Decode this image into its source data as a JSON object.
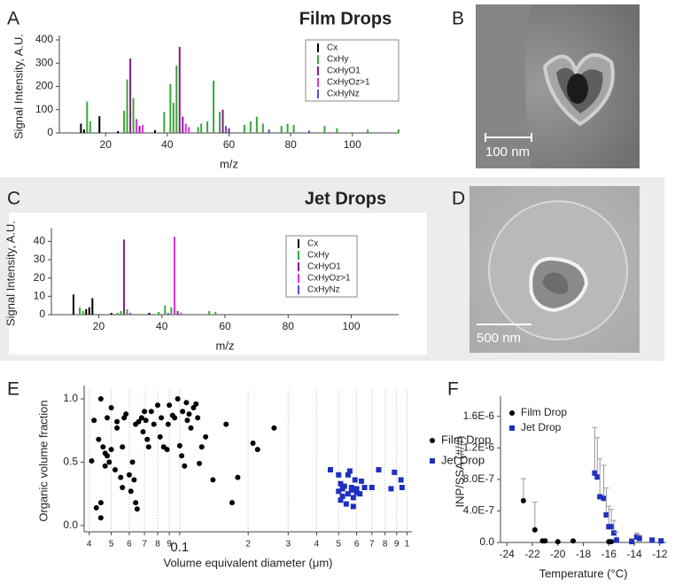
{
  "chart_data": [
    {
      "type": "bar",
      "panel_label": "A",
      "title": "Film Drops",
      "xlabel": "m/z",
      "ylabel": "Signal Intensity, A.U.",
      "xlim": [
        5,
        115
      ],
      "ylim": [
        0,
        400
      ],
      "xticks": [
        20,
        40,
        60,
        80,
        100
      ],
      "yticks": [
        0,
        100,
        200,
        300,
        400
      ],
      "series": [
        {
          "name": "Cx",
          "color": "#000000",
          "x": [
            12,
            13,
            18,
            24,
            36
          ],
          "values": [
            40,
            15,
            72,
            8,
            12
          ]
        },
        {
          "name": "CxHy",
          "color": "#3aa63a",
          "x": [
            14,
            15,
            26,
            27,
            29,
            39,
            41,
            42,
            43,
            50,
            51,
            53,
            55,
            57,
            65,
            67,
            69,
            71,
            77,
            79,
            81,
            91,
            95,
            105,
            115
          ],
          "values": [
            135,
            50,
            95,
            230,
            150,
            90,
            210,
            130,
            290,
            25,
            40,
            50,
            225,
            90,
            35,
            50,
            70,
            40,
            30,
            40,
            35,
            30,
            20,
            15,
            15
          ]
        },
        {
          "name": "CxHyO1",
          "color": "#8b1a8b",
          "x": [
            28,
            31,
            44,
            45,
            58,
            60
          ],
          "values": [
            320,
            30,
            370,
            70,
            100,
            20
          ]
        },
        {
          "name": "CxHyOz>1",
          "color": "#e030e0",
          "x": [
            30,
            32,
            46,
            47
          ],
          "values": [
            60,
            35,
            40,
            25
          ]
        },
        {
          "name": "CxHyNz",
          "color": "#5050e0",
          "x": [
            59,
            73,
            86
          ],
          "values": [
            30,
            15,
            10
          ]
        }
      ]
    },
    {
      "type": "bar",
      "panel_label": "C",
      "title": "Jet Drops",
      "xlabel": "m/z",
      "ylabel": "Signal Intensity, A.U.",
      "xlim": [
        5,
        115
      ],
      "ylim": [
        0,
        45
      ],
      "xticks": [
        20,
        40,
        60,
        80,
        100
      ],
      "yticks": [
        0,
        10,
        20,
        30,
        40
      ],
      "series": [
        {
          "name": "Cx",
          "color": "#000000",
          "x": [
            12,
            16,
            17,
            18,
            24,
            36
          ],
          "values": [
            11,
            3,
            4,
            9,
            1,
            1
          ]
        },
        {
          "name": "CxHy",
          "color": "#3aa63a",
          "x": [
            14,
            15,
            26,
            27,
            29,
            39,
            41,
            43,
            55,
            57
          ],
          "values": [
            4,
            2,
            1,
            2,
            3,
            1.5,
            5,
            4,
            2,
            1.5
          ]
        },
        {
          "name": "CxHyO1",
          "color": "#8b1a8b",
          "x": [
            28,
            45
          ],
          "values": [
            41,
            2
          ]
        },
        {
          "name": "CxHyOz>1",
          "color": "#e030e0",
          "x": [
            44,
            46
          ],
          "values": [
            42.5,
            1
          ]
        },
        {
          "name": "CxHyNz",
          "color": "#5050e0",
          "x": [
            30,
            42
          ],
          "values": [
            1,
            1
          ]
        }
      ]
    },
    {
      "type": "scatter",
      "panel_label": "E",
      "xlabel": "Volume equivalent diameter (μm)",
      "ylabel": "Organic volume fraction",
      "xscale": "log",
      "xlim": [
        0.038,
        1.05
      ],
      "ylim": [
        -0.05,
        1.07
      ],
      "grid": true,
      "xticks": [
        {
          "value": 0.04,
          "label": "4"
        },
        {
          "value": 0.05,
          "label": "5"
        },
        {
          "value": 0.06,
          "label": "6"
        },
        {
          "value": 0.07,
          "label": "7"
        },
        {
          "value": 0.08,
          "label": "8"
        },
        {
          "value": 0.09,
          "label": "9"
        },
        {
          "value": 0.1,
          "label": "0.1"
        },
        {
          "value": 0.2,
          "label": "2"
        },
        {
          "value": 0.3,
          "label": "3"
        },
        {
          "value": 0.4,
          "label": "4"
        },
        {
          "value": 0.5,
          "label": "5"
        },
        {
          "value": 0.6,
          "label": "6"
        },
        {
          "value": 0.7,
          "label": "7"
        },
        {
          "value": 0.8,
          "label": "8"
        },
        {
          "value": 0.9,
          "label": "9"
        },
        {
          "value": 1,
          "label": "1"
        }
      ],
      "yticks": [
        {
          "value": 0,
          "label": "0.0"
        },
        {
          "value": 0.5,
          "label": "0.5"
        },
        {
          "value": 1,
          "label": "1.0"
        }
      ],
      "series": [
        {
          "name": "Film Drop",
          "color": "#000000",
          "marker": "circle",
          "x": [
            0.041,
            0.042,
            0.043,
            0.044,
            0.045,
            0.045,
            0.045,
            0.046,
            0.047,
            0.047,
            0.048,
            0.048,
            0.049,
            0.05,
            0.05,
            0.052,
            0.053,
            0.053,
            0.055,
            0.056,
            0.056,
            0.057,
            0.058,
            0.06,
            0.061,
            0.062,
            0.063,
            0.064,
            0.065,
            0.064,
            0.066,
            0.068,
            0.069,
            0.07,
            0.071,
            0.072,
            0.073,
            0.075,
            0.077,
            0.08,
            0.082,
            0.083,
            0.085,
            0.088,
            0.089,
            0.09,
            0.093,
            0.095,
            0.098,
            0.1,
            0.102,
            0.103,
            0.105,
            0.107,
            0.108,
            0.11,
            0.112,
            0.115,
            0.118,
            0.12,
            0.122,
            0.125,
            0.13,
            0.14,
            0.16,
            0.17,
            0.18,
            0.21,
            0.22,
            0.26
          ],
          "values": [
            0.51,
            0.83,
            0.14,
            0.68,
            0.18,
            1.0,
            0.06,
            0.62,
            0.57,
            0.47,
            0.55,
            0.85,
            0.5,
            0.6,
            0.93,
            0.44,
            0.77,
            0.82,
            0.38,
            0.62,
            0.3,
            0.85,
            0.88,
            0.4,
            0.27,
            0.5,
            0.36,
            0.18,
            0.13,
            0.8,
            0.82,
            0.85,
            0.74,
            0.9,
            0.83,
            0.68,
            0.62,
            0.9,
            0.8,
            0.95,
            0.7,
            0.85,
            0.62,
            0.6,
            0.8,
            0.95,
            0.87,
            0.85,
            1.0,
            0.63,
            0.55,
            0.9,
            0.47,
            0.97,
            0.83,
            0.88,
            0.77,
            0.93,
            0.96,
            0.85,
            0.49,
            0.62,
            0.7,
            0.36,
            0.8,
            0.18,
            0.38,
            0.65,
            0.6,
            0.77
          ]
        },
        {
          "name": "Jet Drop",
          "color": "#1f2fbf",
          "marker": "square",
          "x": [
            0.46,
            0.5,
            0.5,
            0.51,
            0.51,
            0.52,
            0.52,
            0.53,
            0.54,
            0.55,
            0.55,
            0.56,
            0.57,
            0.57,
            0.58,
            0.58,
            0.59,
            0.6,
            0.6,
            0.62,
            0.63,
            0.65,
            0.7,
            0.75,
            0.85,
            0.88,
            0.94,
            0.95
          ],
          "values": [
            0.44,
            0.4,
            0.27,
            0.33,
            0.2,
            0.23,
            0.29,
            0.31,
            0.17,
            0.25,
            0.4,
            0.43,
            0.28,
            0.3,
            0.15,
            0.22,
            0.36,
            0.29,
            0.26,
            0.25,
            0.35,
            0.3,
            0.3,
            0.44,
            0.29,
            0.42,
            0.36,
            0.3
          ]
        }
      ]
    },
    {
      "type": "scatter",
      "panel_label": "F",
      "xlabel": "Temperature (°C)",
      "ylabel": "INP/SSA (#/#)",
      "xlim": [
        -24.5,
        -11.5
      ],
      "ylim": [
        0,
        1.8e-06
      ],
      "xticks": [
        -24,
        -22,
        -20,
        -18,
        -16,
        -14,
        -12
      ],
      "yticks": [
        {
          "value": 0,
          "label": "0.0"
        },
        {
          "value": 4e-07,
          "label": "4.0E-7"
        },
        {
          "value": 8e-07,
          "label": "8.0E-7"
        },
        {
          "value": 1.2e-06,
          "label": "1.2E-6"
        },
        {
          "value": 1.6e-06,
          "label": "1.6E-6"
        }
      ],
      "series": [
        {
          "name": "Film Drop",
          "color": "#000000",
          "marker": "circle",
          "x": [
            -22.7,
            -21.8,
            -21.2,
            -21,
            -20,
            -18.8,
            -16,
            -15.8
          ],
          "values": [
            5.3e-07,
            1.6e-07,
            2e-08,
            2e-08,
            1e-08,
            2e-08,
            1e-08,
            1e-08
          ],
          "errors": [
            2.8e-07,
            3.5e-07,
            0,
            0,
            0,
            0,
            0,
            0
          ]
        },
        {
          "name": "Jet Drop",
          "color": "#1f2fbf",
          "marker": "square",
          "x": [
            -17.1,
            -16.9,
            -16.7,
            -16.4,
            -16.2,
            -16,
            -15.8,
            -15.6,
            -15.4,
            -14.2,
            -13.8,
            -13.6,
            -12.6,
            -11.9
          ],
          "values": [
            8.8e-07,
            8.3e-07,
            5.8e-07,
            5.6e-07,
            3.5e-07,
            2e-07,
            2e-07,
            1.2e-07,
            3e-08,
            1e-08,
            7e-08,
            5e-08,
            3e-08,
            2e-08
          ],
          "errors": [
            5.8e-07,
            5e-07,
            4.8e-07,
            4.2e-07,
            3.4e-07,
            2.6e-07,
            2.2e-07,
            1.6e-07,
            1e-07,
            4e-08,
            5e-08,
            4e-08,
            2e-08,
            2e-08
          ]
        }
      ]
    }
  ],
  "images": [
    {
      "panel_label": "B",
      "scale_label": "100 nm"
    },
    {
      "panel_label": "D",
      "scale_label": "500 nm"
    }
  ]
}
